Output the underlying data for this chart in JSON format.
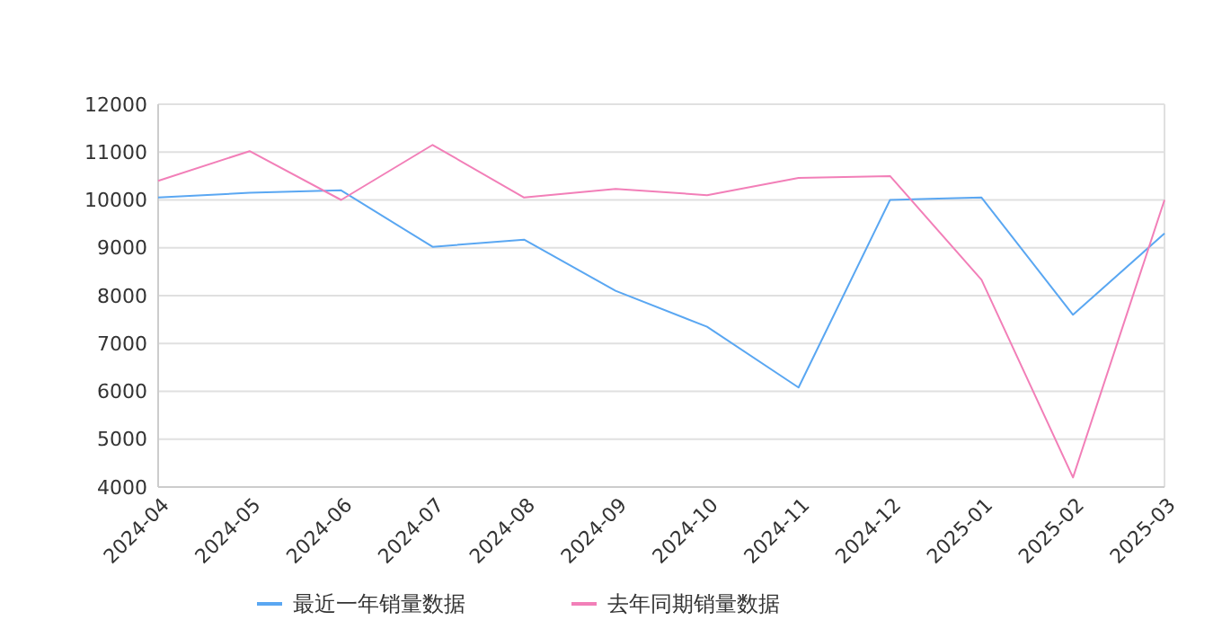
{
  "chart_data": {
    "type": "line",
    "categories": [
      "2024-04",
      "2024-05",
      "2024-06",
      "2024-07",
      "2024-08",
      "2024-09",
      "2024-10",
      "2024-11",
      "2024-12",
      "2025-01",
      "2025-02",
      "2025-03"
    ],
    "series": [
      {
        "name": "最近一年销量数据",
        "color": "#5aa7f2",
        "values": [
          10050,
          10150,
          10200,
          9020,
          9170,
          8100,
          7350,
          6080,
          10000,
          10050,
          7600,
          9300
        ]
      },
      {
        "name": "去年同期销量数据",
        "color": "#f27fb8",
        "values": [
          10400,
          11020,
          10000,
          11150,
          10050,
          10230,
          10100,
          10460,
          10500,
          8330,
          4200,
          10000
        ]
      }
    ],
    "ylim": [
      4000,
      12000
    ],
    "yticks": [
      4000,
      5000,
      6000,
      7000,
      8000,
      9000,
      10000,
      11000,
      12000
    ],
    "grid": "y",
    "legend": "bottom",
    "marker": "none",
    "line_style": "solid"
  }
}
